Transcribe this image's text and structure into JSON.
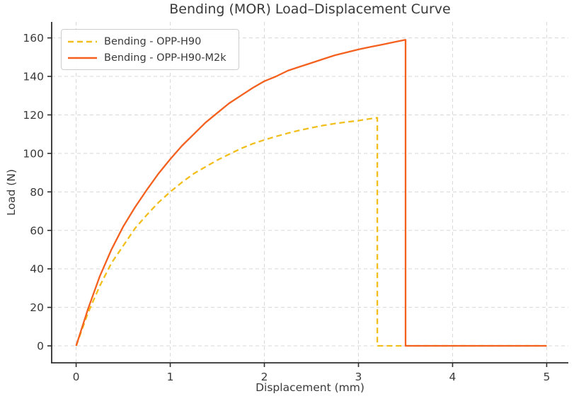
{
  "chart_data": {
    "type": "line",
    "title": "Bending (MOR) Load–Displacement Curve",
    "xlabel": "Displacement (mm)",
    "ylabel": "Load (N)",
    "xlim": [
      -0.26,
      5.23
    ],
    "ylim": [
      -8.8,
      168.3
    ],
    "xticks": [
      0,
      1,
      2,
      3,
      4,
      5
    ],
    "yticks": [
      0,
      20,
      40,
      60,
      80,
      100,
      120,
      140,
      160
    ],
    "grid": true,
    "grid_style": "dashed",
    "legend_position": "upper-left",
    "background_color": "#ffffff",
    "text_color": "#3a3a3a",
    "grid_color": "#d8d8d8",
    "spine_color": "#2e2e2e",
    "series": [
      {
        "name": "Bending - OPP-H90",
        "color": "#F2BE1B",
        "line_style": "dashed",
        "line_width": 2.3,
        "peak_load_N": 118.5,
        "failure_displacement_mm": 3.2,
        "points": [
          [
            0,
            0
          ],
          [
            0.125,
            17
          ],
          [
            0.25,
            31
          ],
          [
            0.375,
            43
          ],
          [
            0.5,
            52
          ],
          [
            0.625,
            61
          ],
          [
            0.75,
            68
          ],
          [
            0.875,
            74.5
          ],
          [
            1,
            80
          ],
          [
            1.125,
            85
          ],
          [
            1.25,
            89.5
          ],
          [
            1.375,
            93
          ],
          [
            1.5,
            96.5
          ],
          [
            1.625,
            99.5
          ],
          [
            1.75,
            102.5
          ],
          [
            1.875,
            105
          ],
          [
            2,
            107
          ],
          [
            2.125,
            108.8
          ],
          [
            2.25,
            110.5
          ],
          [
            2.375,
            112
          ],
          [
            2.5,
            113.3
          ],
          [
            2.625,
            114.5
          ],
          [
            2.75,
            115.5
          ],
          [
            2.875,
            116.3
          ],
          [
            3,
            117
          ],
          [
            3.1,
            117.8
          ],
          [
            3.2,
            118.5
          ],
          [
            3.2,
            0
          ],
          [
            5,
            0
          ]
        ]
      },
      {
        "name": "Bending - OPP-H90-M2k",
        "color": "#F4601E",
        "line_style": "solid",
        "line_width": 2.3,
        "peak_load_N": 159,
        "failure_displacement_mm": 3.5,
        "points": [
          [
            0,
            0
          ],
          [
            0.125,
            19
          ],
          [
            0.25,
            36
          ],
          [
            0.375,
            50
          ],
          [
            0.5,
            62
          ],
          [
            0.625,
            72
          ],
          [
            0.75,
            81
          ],
          [
            0.875,
            89.5
          ],
          [
            1,
            97
          ],
          [
            1.125,
            104
          ],
          [
            1.25,
            110
          ],
          [
            1.375,
            116
          ],
          [
            1.5,
            121
          ],
          [
            1.625,
            126
          ],
          [
            1.75,
            130
          ],
          [
            1.875,
            134
          ],
          [
            2,
            137.5
          ],
          [
            2.125,
            140
          ],
          [
            2.25,
            143
          ],
          [
            2.375,
            145
          ],
          [
            2.5,
            147
          ],
          [
            2.625,
            149
          ],
          [
            2.75,
            151
          ],
          [
            2.875,
            152.5
          ],
          [
            3,
            154
          ],
          [
            3.125,
            155.3
          ],
          [
            3.25,
            156.5
          ],
          [
            3.375,
            157.8
          ],
          [
            3.5,
            159
          ],
          [
            3.5,
            0
          ],
          [
            5,
            0
          ]
        ]
      }
    ]
  }
}
